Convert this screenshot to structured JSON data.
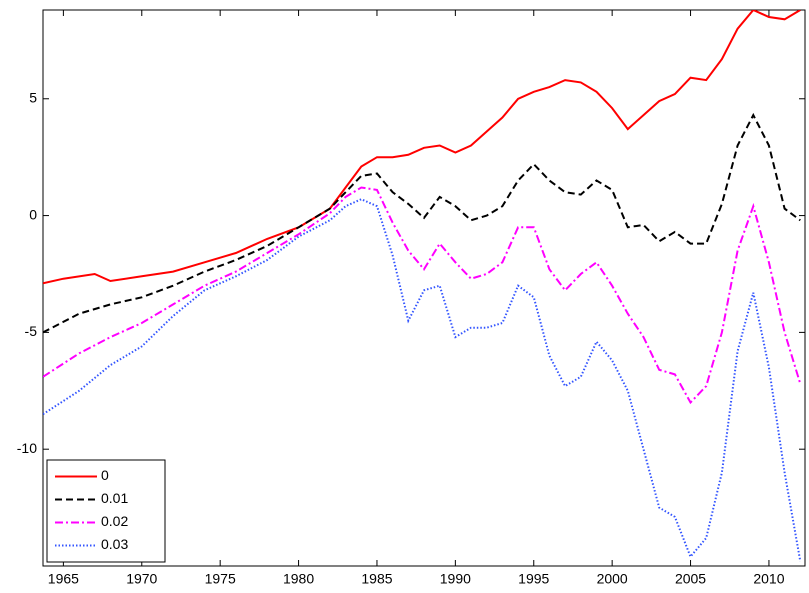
{
  "chart_data": {
    "type": "line",
    "xlim": [
      1963.7,
      2012.3
    ],
    "ylim": [
      -15,
      8.8
    ],
    "xticks": [
      1965,
      1970,
      1975,
      1980,
      1985,
      1990,
      1995,
      2000,
      2005,
      2010
    ],
    "yticks": [
      -10,
      -5,
      0,
      5
    ],
    "legend": "lower-left",
    "series": [
      {
        "name": "0",
        "color": "#ff0000",
        "dash": "none",
        "x": [
          1963.7,
          1965,
          1967,
          1968,
          1970,
          1972,
          1974,
          1976,
          1978,
          1980,
          1982,
          1983,
          1984,
          1985,
          1986,
          1987,
          1988,
          1989,
          1990,
          1991,
          1992,
          1993,
          1994,
          1995,
          1996,
          1997,
          1998,
          1999,
          2000,
          2001,
          2002,
          2003,
          2004,
          2005,
          2006,
          2007,
          2008,
          2009,
          2010,
          2011,
          2012
        ],
        "values": [
          -2.9,
          -2.7,
          -2.5,
          -2.8,
          -2.6,
          -2.4,
          -2.0,
          -1.6,
          -1.0,
          -0.5,
          0.3,
          1.2,
          2.1,
          2.5,
          2.5,
          2.6,
          2.9,
          3.0,
          2.7,
          3.0,
          3.6,
          4.2,
          5.0,
          5.3,
          5.5,
          5.8,
          5.7,
          5.3,
          4.6,
          3.7,
          4.3,
          4.9,
          5.2,
          5.9,
          5.8,
          6.7,
          8.0,
          8.8,
          8.5,
          8.4,
          8.8
        ]
      },
      {
        "name": "0.01",
        "color": "#000000",
        "dash": "7,4",
        "x": [
          1963.7,
          1966,
          1968,
          1970,
          1972,
          1974,
          1976,
          1978,
          1980,
          1982,
          1983,
          1984,
          1985,
          1986,
          1987,
          1988,
          1989,
          1990,
          1991,
          1992,
          1993,
          1994,
          1995,
          1996,
          1997,
          1998,
          1999,
          2000,
          2001,
          2002,
          2003,
          2004,
          2005,
          2006,
          2007,
          2008,
          2009,
          2010,
          2011,
          2012
        ],
        "values": [
          -5.0,
          -4.2,
          -3.8,
          -3.5,
          -3.0,
          -2.4,
          -1.9,
          -1.3,
          -0.5,
          0.3,
          1.0,
          1.7,
          1.8,
          1.0,
          0.5,
          -0.1,
          0.8,
          0.4,
          -0.2,
          0.0,
          0.4,
          1.5,
          2.2,
          1.5,
          1.0,
          0.9,
          1.5,
          1.1,
          -0.5,
          -0.4,
          -1.1,
          -0.7,
          -1.2,
          -1.2,
          0.5,
          3.0,
          4.3,
          3.0,
          0.3,
          -0.2
        ]
      },
      {
        "name": "0.02",
        "color": "#ff00ff",
        "dash": "8,3,2,3",
        "x": [
          1963.7,
          1966,
          1968,
          1970,
          1972,
          1974,
          1976,
          1978,
          1980,
          1982,
          1983,
          1984,
          1985,
          1986,
          1987,
          1988,
          1989,
          1990,
          1991,
          1992,
          1993,
          1994,
          1995,
          1996,
          1997,
          1998,
          1999,
          2000,
          2001,
          2002,
          2003,
          2004,
          2005,
          2006,
          2007,
          2008,
          2009,
          2010,
          2011,
          2012
        ],
        "values": [
          -6.9,
          -5.9,
          -5.2,
          -4.6,
          -3.8,
          -3.0,
          -2.4,
          -1.6,
          -0.8,
          0.1,
          0.8,
          1.2,
          1.1,
          -0.3,
          -1.5,
          -2.3,
          -1.2,
          -2.0,
          -2.7,
          -2.5,
          -2.0,
          -0.5,
          -0.5,
          -2.3,
          -3.2,
          -2.5,
          -2.0,
          -3.0,
          -4.2,
          -5.2,
          -6.6,
          -6.8,
          -8.0,
          -7.3,
          -5.0,
          -1.5,
          0.4,
          -2.0,
          -5.0,
          -7.2
        ]
      },
      {
        "name": "0.03",
        "color": "#3355ff",
        "dash": "1.5,2",
        "x": [
          1963.7,
          1966,
          1968,
          1970,
          1972,
          1974,
          1976,
          1978,
          1980,
          1982,
          1983,
          1984,
          1985,
          1986,
          1987,
          1988,
          1989,
          1990,
          1991,
          1992,
          1993,
          1994,
          1995,
          1996,
          1997,
          1998,
          1999,
          2000,
          2001,
          2002,
          2003,
          2004,
          2005,
          2006,
          2007,
          2008,
          2009,
          2010,
          2011,
          2012
        ],
        "values": [
          -8.5,
          -7.5,
          -6.4,
          -5.6,
          -4.3,
          -3.2,
          -2.6,
          -1.9,
          -0.9,
          -0.2,
          0.4,
          0.7,
          0.4,
          -1.7,
          -4.5,
          -3.2,
          -3.0,
          -5.2,
          -4.8,
          -4.8,
          -4.6,
          -3.0,
          -3.5,
          -6.0,
          -7.3,
          -6.9,
          -5.4,
          -6.2,
          -7.5,
          -10.0,
          -12.5,
          -12.9,
          -14.6,
          -13.8,
          -11.0,
          -5.8,
          -3.3,
          -6.5,
          -11.0,
          -14.8
        ]
      }
    ]
  }
}
